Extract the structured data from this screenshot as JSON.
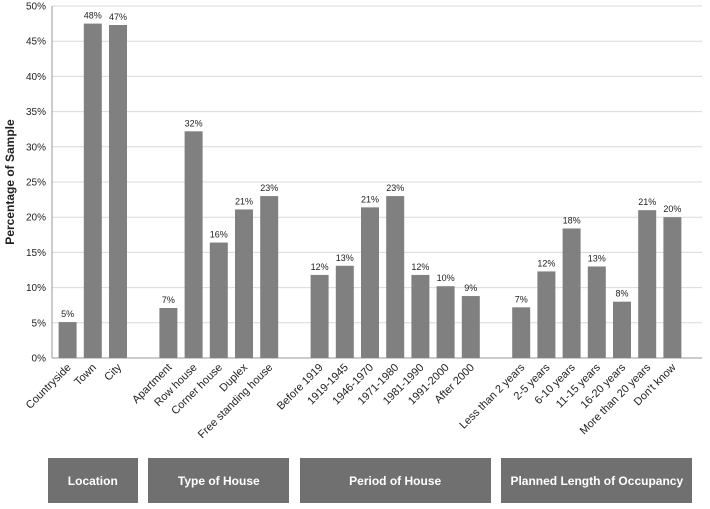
{
  "chart_data": {
    "type": "bar",
    "y_label": "Percentage of Sample",
    "categories": [
      "Countryside",
      "Town",
      "City",
      null,
      "Apartment",
      "Row house",
      "Corner house",
      "Duplex",
      "Free standing house",
      null,
      "Before 1919",
      "1919-1945",
      "1946-1970",
      "1971-1980",
      "1981-1990",
      "1991-2000",
      "After 2000",
      null,
      "Less than 2 years",
      "2-5 years",
      "6-10 years",
      "11-15 years",
      "16-20 years",
      "More than 20 years",
      "Don't know"
    ],
    "values": [
      5.1,
      47.5,
      47.3,
      null,
      7.1,
      32.2,
      16.4,
      21.1,
      23.0,
      null,
      11.8,
      13.1,
      21.4,
      23.0,
      11.8,
      10.2,
      8.8,
      null,
      7.2,
      12.3,
      18.4,
      13.0,
      8.0,
      21.0,
      20.0
    ],
    "value_labels": [
      "5%",
      "48%",
      "47%",
      null,
      "7%",
      "32%",
      "16%",
      "21%",
      "23%",
      null,
      "12%",
      "13%",
      "21%",
      "23%",
      "12%",
      "10%",
      "9%",
      null,
      "7%",
      "12%",
      "18%",
      "13%",
      "8%",
      "21%",
      "20%"
    ],
    "groups": [
      "Location",
      "Type of House",
      "Period of House",
      "Planned Length of Occupancy"
    ],
    "color": "#808080",
    "ylim": [
      0,
      50
    ],
    "yticks": [
      {
        "value": 0,
        "label": "0%"
      },
      {
        "value": 5,
        "label": "5%"
      },
      {
        "value": 10,
        "label": "10%"
      },
      {
        "value": 15,
        "label": "15%"
      },
      {
        "value": 20,
        "label": "20%"
      },
      {
        "value": 25,
        "label": "25%"
      },
      {
        "value": 30,
        "label": "30%"
      },
      {
        "value": 35,
        "label": "35%"
      },
      {
        "value": 40,
        "label": "40%"
      },
      {
        "value": 45,
        "label": "45%"
      },
      {
        "value": 50,
        "label": "50%"
      }
    ],
    "grid": true
  }
}
